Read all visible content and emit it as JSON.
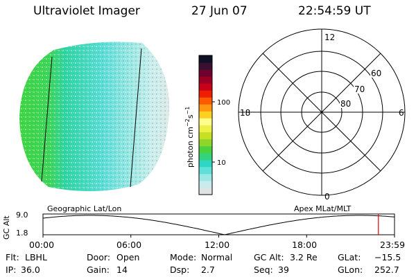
{
  "header": {
    "instrument": "Ultraviolet Imager",
    "date": "27 Jun 07",
    "time": "22:54:59 UT"
  },
  "colorbar": {
    "unit_label": "photon cm",
    "unit_exp1": "−2",
    "unit_mid": "s",
    "unit_exp2": "−1",
    "ticks": [
      "100",
      "10"
    ],
    "colors": [
      "#dfe3e3",
      "#c8ecec",
      "#9ae8e4",
      "#5fe0d6",
      "#2fd6c4",
      "#34d27c",
      "#4ad23c",
      "#8ed629",
      "#c6e025",
      "#eef04a",
      "#ffff8a",
      "#ffd020",
      "#ff9810",
      "#ff5a00",
      "#ee1c00",
      "#c80018",
      "#9a0024",
      "#6e0030",
      "#3a1030",
      "#101026"
    ]
  },
  "image_panel": {
    "label": "Geographic Lat/Lon"
  },
  "polar_panel": {
    "label": "Apex MLat/MLT",
    "mlt_labels": [
      "12",
      "18",
      "6",
      "0"
    ],
    "lat_labels": [
      "60",
      "70",
      "80"
    ]
  },
  "orbit_plot": {
    "ylabel": "GC Alt",
    "y_ticks": [
      "9.0",
      "1.8"
    ],
    "x_ticks": [
      "00:00",
      "06:00",
      "12:00",
      "18:00",
      "23:59"
    ],
    "current_time_marker_hours": 22.9
  },
  "status": {
    "flt_label": "Flt:",
    "flt_value": "LBHL",
    "ip_label": "IP:",
    "ip_value": "36.0",
    "door_label": "Door:",
    "door_value": "Open",
    "gain_label": "Gain:",
    "gain_value": "14",
    "mode_label": "Mode:",
    "mode_value": "Normal",
    "dsp_label": "Dsp:",
    "dsp_value": "2.7",
    "gcalt_label": "GC Alt:",
    "gcalt_value": "3.2 Re",
    "seq_label": "Seq:",
    "seq_value": "39",
    "glat_label": "GLat:",
    "glat_value": "−15.5",
    "glon_label": "GLon:",
    "glon_value": "252.7"
  }
}
